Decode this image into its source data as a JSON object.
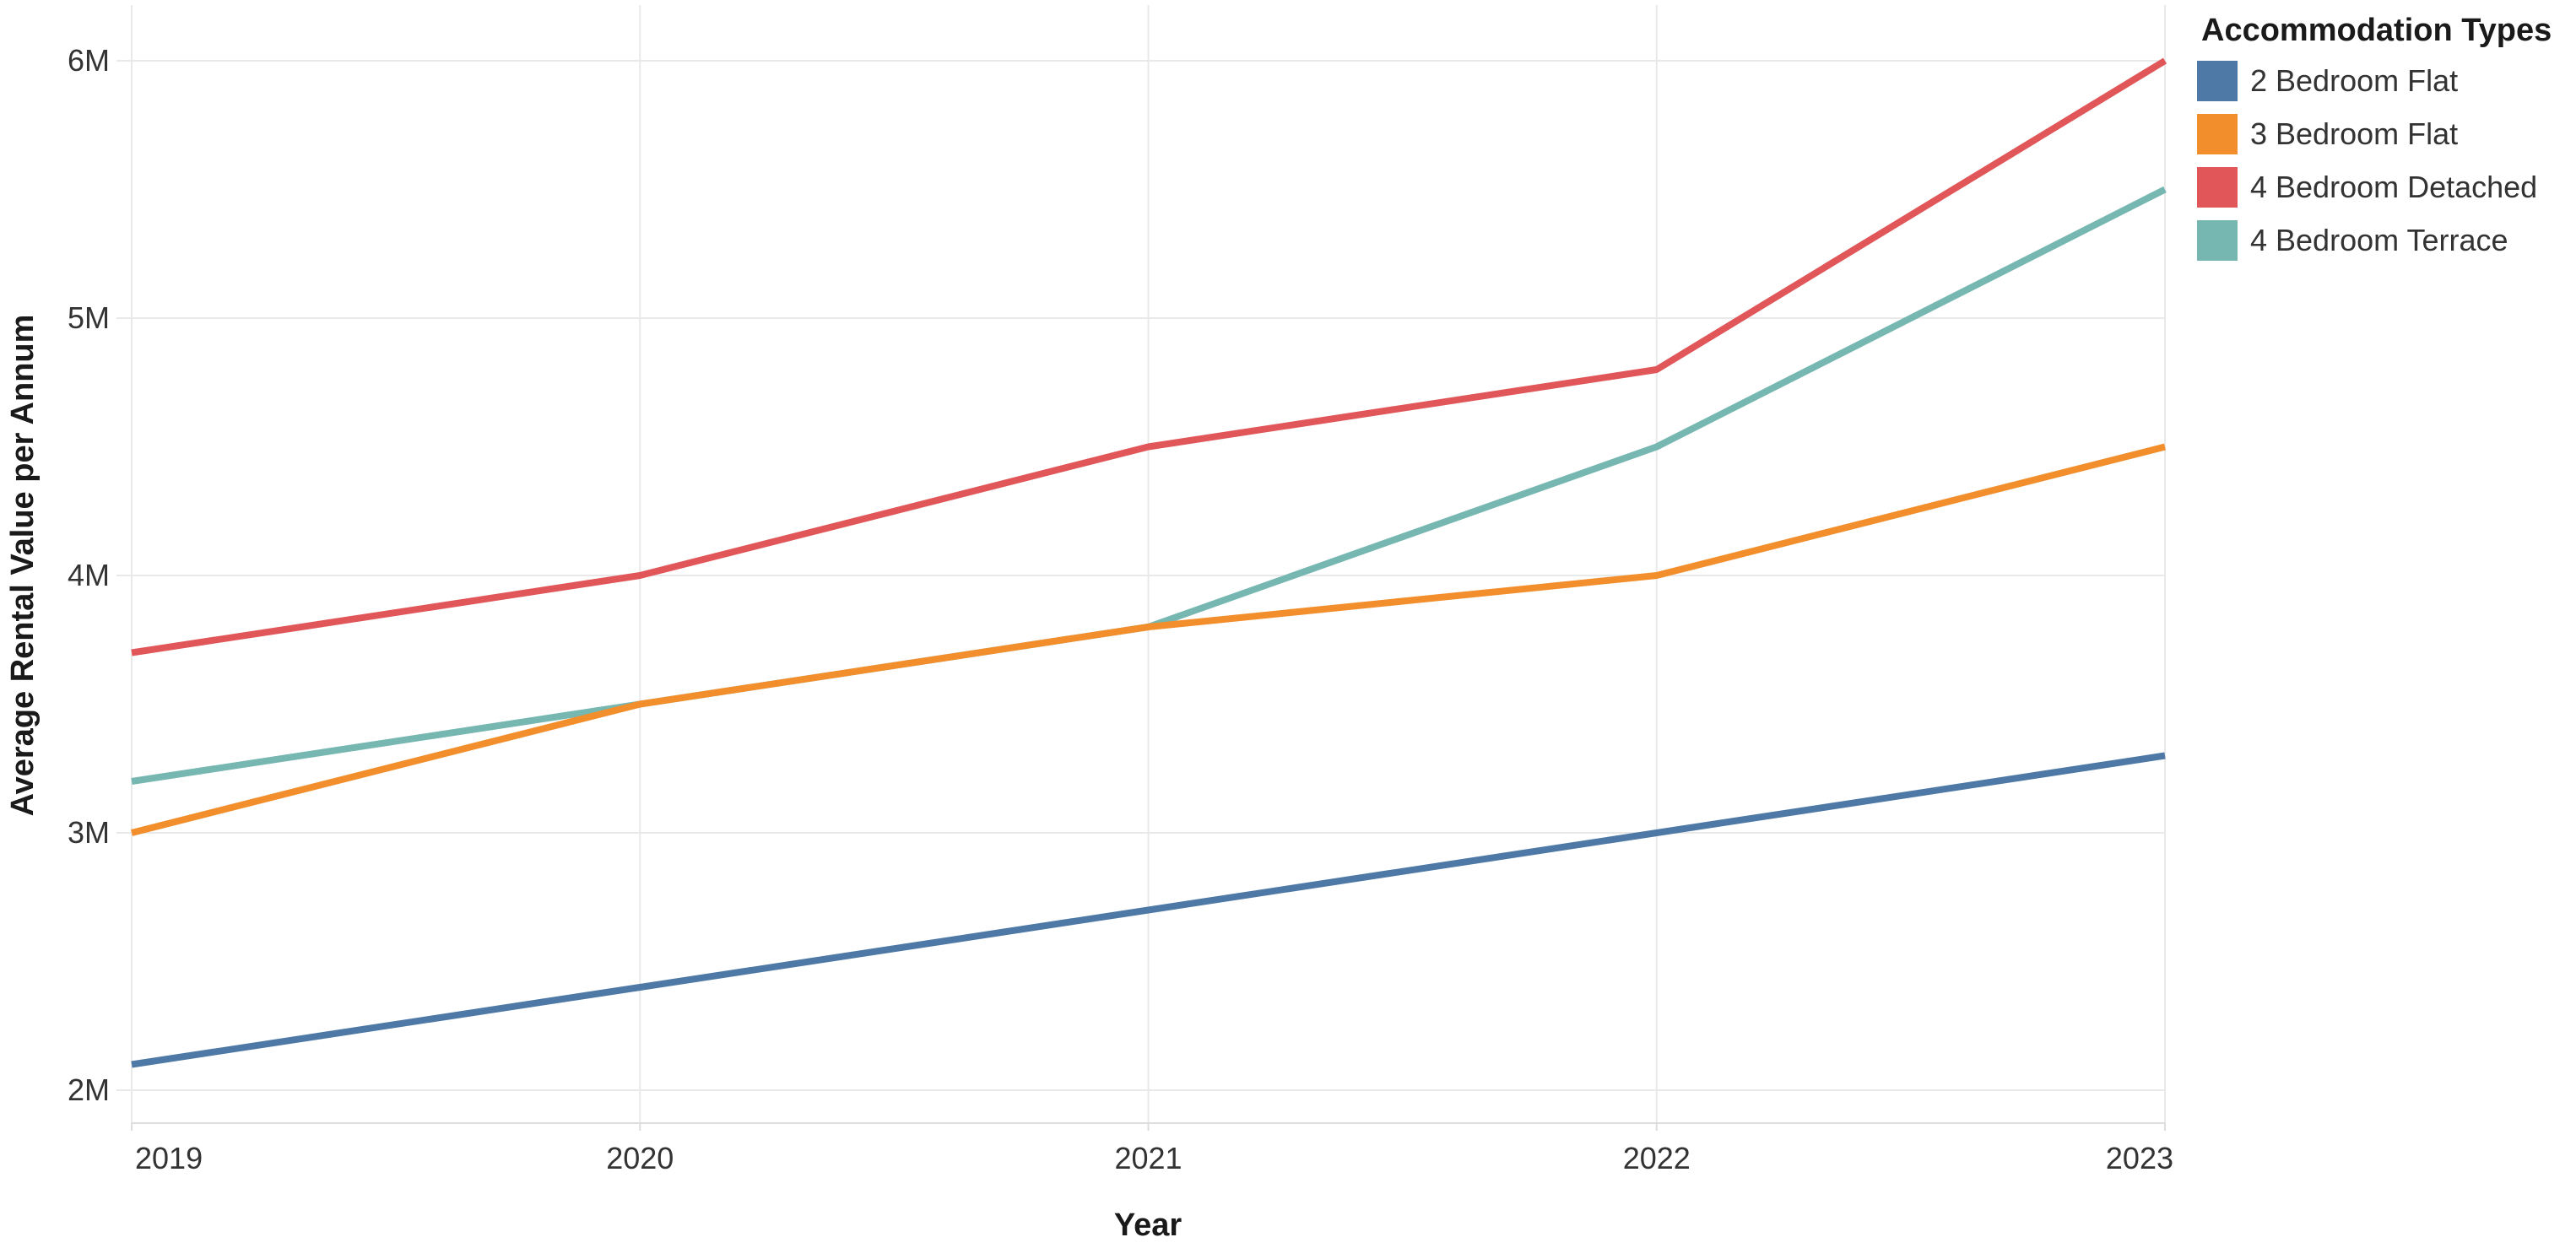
{
  "chart_data": {
    "type": "line",
    "categories": [
      "2019",
      "2020",
      "2021",
      "2022",
      "2023"
    ],
    "series": [
      {
        "name": "2 Bedroom Flat",
        "color": "#4e79a7",
        "values": [
          2.1,
          2.4,
          2.7,
          3.0,
          3.3
        ]
      },
      {
        "name": "3 Bedroom Flat",
        "color": "#f28e2b",
        "values": [
          3.0,
          3.5,
          3.8,
          4.0,
          4.5
        ]
      },
      {
        "name": "4 Bedroom Detached",
        "color": "#e15759",
        "values": [
          3.7,
          4.0,
          4.5,
          4.8,
          6.0
        ]
      },
      {
        "name": "4 Bedroom Terrace",
        "color": "#76b7b2",
        "values": [
          3.2,
          3.5,
          3.8,
          4.5,
          5.5
        ]
      }
    ],
    "values_unit": "M",
    "xlabel": "Year",
    "ylabel": "Average Rental Value per Annum",
    "y_ticks": [
      {
        "value": 2,
        "label": "2M"
      },
      {
        "value": 3,
        "label": "3M"
      },
      {
        "value": 4,
        "label": "4M"
      },
      {
        "value": 5,
        "label": "5M"
      },
      {
        "value": 6,
        "label": "6M"
      }
    ],
    "ylim": [
      1.87,
      6.24
    ],
    "grid": true,
    "legend_title": "Accommodation Types",
    "legend_position": "top-right",
    "background": "#ffffff",
    "gridline_color": "#e9e9e9",
    "axisline_color": "#dddddd",
    "text_color": "#333333"
  }
}
